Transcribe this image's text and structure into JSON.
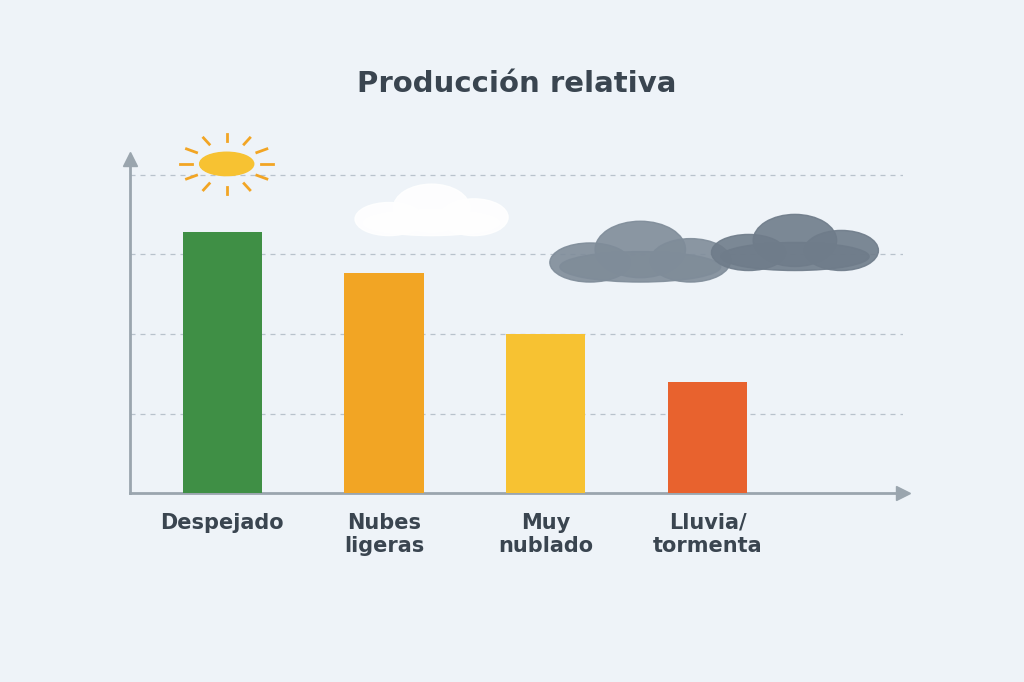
{
  "chart_data": {
    "type": "bar",
    "title": "Producción relativa",
    "categories": [
      "Despejado",
      "Nubes\nligeras",
      "Muy\nnublado",
      "Lluvia/\ntormenta"
    ],
    "values": [
      82,
      69,
      50,
      35
    ],
    "colors": [
      "#3f8f45",
      "#f2a524",
      "#f7c232",
      "#e8622e"
    ],
    "ylim": [
      0,
      105
    ],
    "yticks": [
      25,
      50,
      75,
      100
    ],
    "grid": true,
    "tick_labels": "x"
  }
}
